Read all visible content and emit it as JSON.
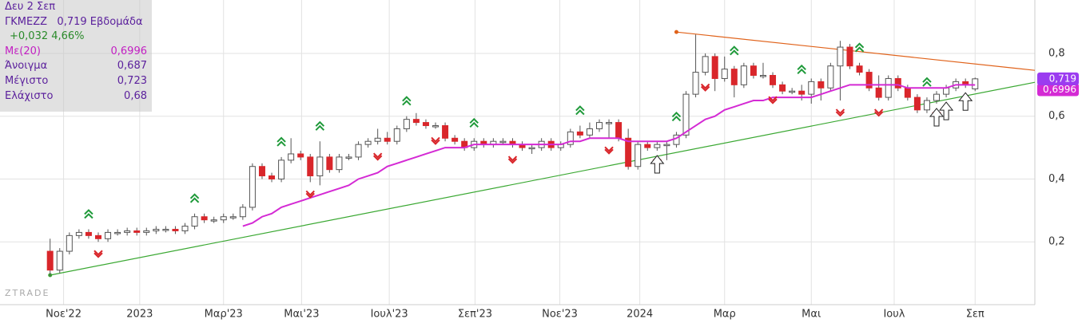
{
  "chart_data": {
    "type": "candlestick",
    "watermark": "ZTRADE",
    "info": {
      "date": "Δευ 2 Σεπ",
      "symbol": "ΓΚΜΕΖΖ",
      "last": "0,719",
      "period": "Εβδομάδα",
      "change": "+0,032 4,66%",
      "rows": [
        {
          "label": "Με(20)",
          "value": "0,6996"
        },
        {
          "label": "Άνοιγμα",
          "value": "0,687"
        },
        {
          "label": "Μέγιστο",
          "value": "0,723"
        },
        {
          "label": "Ελάχιστο",
          "value": "0,68"
        }
      ]
    },
    "xlim": [
      -5.2,
      102.2
    ],
    "ylim": [
      0,
      0.97
    ],
    "xticks": [
      {
        "value": 1.4,
        "label": "Νοε'22"
      },
      {
        "value": 9.3,
        "label": "2023"
      },
      {
        "value": 18,
        "label": "Μαρ'23"
      },
      {
        "value": 26.1,
        "label": "Μαι'23"
      },
      {
        "value": 35.2,
        "label": "Ιουλ'23"
      },
      {
        "value": 44.1,
        "label": "Σεπ'23"
      },
      {
        "value": 52.9,
        "label": "Νοε'23"
      },
      {
        "value": 61.2,
        "label": "2024"
      },
      {
        "value": 70,
        "label": "Μαρ"
      },
      {
        "value": 79,
        "label": "Μαι"
      },
      {
        "value": 87.6,
        "label": "Ιουλ"
      },
      {
        "value": 96,
        "label": "Σεπ"
      }
    ],
    "yticks": [
      {
        "value": 0.2,
        "label": "0,2"
      },
      {
        "value": 0.4,
        "label": "0,4"
      },
      {
        "value": 0.6,
        "label": "0,6"
      },
      {
        "value": 0.8,
        "label": "0,8"
      }
    ],
    "grid": true,
    "up_color": "#ffffff",
    "down_color": "#d9262b",
    "x": [
      0,
      1,
      2,
      3,
      4,
      5,
      6,
      7,
      8,
      9,
      10,
      11,
      12,
      13,
      14,
      15,
      16,
      17,
      18,
      19,
      20,
      21,
      22,
      23,
      24,
      25,
      26,
      27,
      28,
      29,
      30,
      31,
      32,
      33,
      34,
      35,
      36,
      37,
      38,
      39,
      40,
      41,
      42,
      43,
      44,
      45,
      46,
      47,
      48,
      49,
      50,
      51,
      52,
      53,
      54,
      55,
      56,
      57,
      58,
      59,
      60,
      61,
      62,
      63,
      64,
      65,
      66,
      67,
      68,
      69,
      70,
      71,
      72,
      73,
      74,
      75,
      76,
      77,
      78,
      79,
      80,
      81,
      82,
      83,
      84,
      85,
      86,
      87,
      88,
      89,
      90,
      91,
      92,
      93,
      94,
      95,
      96
    ],
    "open": [
      0.17,
      0.11,
      0.17,
      0.22,
      0.23,
      0.22,
      0.21,
      0.23,
      0.23,
      0.235,
      0.23,
      0.235,
      0.24,
      0.24,
      0.235,
      0.25,
      0.28,
      0.27,
      0.27,
      0.28,
      0.28,
      0.31,
      0.44,
      0.41,
      0.4,
      0.46,
      0.48,
      0.47,
      0.41,
      0.47,
      0.43,
      0.47,
      0.47,
      0.51,
      0.52,
      0.53,
      0.52,
      0.56,
      0.59,
      0.58,
      0.57,
      0.57,
      0.53,
      0.52,
      0.5,
      0.52,
      0.51,
      0.52,
      0.52,
      0.51,
      0.5,
      0.5,
      0.52,
      0.5,
      0.51,
      0.55,
      0.54,
      0.56,
      0.58,
      0.58,
      0.53,
      0.44,
      0.51,
      0.5,
      0.51,
      0.51,
      0.54,
      0.67,
      0.74,
      0.79,
      0.72,
      0.75,
      0.7,
      0.76,
      0.73,
      0.73,
      0.7,
      0.68,
      0.68,
      0.67,
      0.71,
      0.69,
      0.76,
      0.82,
      0.76,
      0.74,
      0.69,
      0.66,
      0.72,
      0.69,
      0.66,
      0.62,
      0.65,
      0.67,
      0.69,
      0.71,
      0.687
    ],
    "high": [
      0.21,
      0.18,
      0.23,
      0.24,
      0.24,
      0.23,
      0.24,
      0.24,
      0.245,
      0.245,
      0.245,
      0.25,
      0.25,
      0.25,
      0.26,
      0.29,
      0.29,
      0.28,
      0.29,
      0.29,
      0.32,
      0.45,
      0.45,
      0.42,
      0.47,
      0.53,
      0.49,
      0.48,
      0.52,
      0.48,
      0.48,
      0.48,
      0.52,
      0.53,
      0.56,
      0.55,
      0.57,
      0.6,
      0.61,
      0.59,
      0.58,
      0.58,
      0.54,
      0.53,
      0.53,
      0.53,
      0.53,
      0.53,
      0.53,
      0.52,
      0.51,
      0.53,
      0.53,
      0.52,
      0.56,
      0.57,
      0.58,
      0.59,
      0.59,
      0.59,
      0.56,
      0.52,
      0.52,
      0.52,
      0.52,
      0.55,
      0.68,
      0.86,
      0.8,
      0.8,
      0.79,
      0.76,
      0.77,
      0.77,
      0.77,
      0.74,
      0.71,
      0.69,
      0.7,
      0.72,
      0.72,
      0.77,
      0.84,
      0.83,
      0.77,
      0.75,
      0.73,
      0.73,
      0.73,
      0.7,
      0.67,
      0.66,
      0.68,
      0.7,
      0.72,
      0.72,
      0.723
    ],
    "low": [
      0.09,
      0.1,
      0.16,
      0.21,
      0.21,
      0.2,
      0.2,
      0.22,
      0.22,
      0.22,
      0.22,
      0.225,
      0.23,
      0.225,
      0.225,
      0.24,
      0.26,
      0.26,
      0.26,
      0.27,
      0.27,
      0.3,
      0.4,
      0.39,
      0.39,
      0.45,
      0.46,
      0.39,
      0.38,
      0.42,
      0.42,
      0.46,
      0.46,
      0.5,
      0.51,
      0.51,
      0.51,
      0.55,
      0.57,
      0.56,
      0.56,
      0.52,
      0.51,
      0.49,
      0.49,
      0.5,
      0.5,
      0.51,
      0.5,
      0.49,
      0.48,
      0.49,
      0.49,
      0.49,
      0.5,
      0.53,
      0.53,
      0.55,
      0.53,
      0.52,
      0.43,
      0.43,
      0.49,
      0.49,
      0.46,
      0.5,
      0.53,
      0.66,
      0.73,
      0.68,
      0.71,
      0.66,
      0.69,
      0.72,
      0.72,
      0.69,
      0.67,
      0.67,
      0.65,
      0.64,
      0.65,
      0.68,
      0.65,
      0.75,
      0.73,
      0.68,
      0.65,
      0.65,
      0.68,
      0.65,
      0.61,
      0.61,
      0.64,
      0.66,
      0.68,
      0.69,
      0.68
    ],
    "close": [
      0.11,
      0.17,
      0.22,
      0.23,
      0.22,
      0.21,
      0.23,
      0.23,
      0.235,
      0.23,
      0.235,
      0.24,
      0.24,
      0.235,
      0.25,
      0.28,
      0.27,
      0.27,
      0.28,
      0.28,
      0.31,
      0.44,
      0.41,
      0.4,
      0.46,
      0.48,
      0.47,
      0.41,
      0.47,
      0.43,
      0.47,
      0.47,
      0.51,
      0.52,
      0.53,
      0.52,
      0.56,
      0.59,
      0.58,
      0.57,
      0.57,
      0.53,
      0.52,
      0.5,
      0.52,
      0.51,
      0.52,
      0.52,
      0.51,
      0.5,
      0.5,
      0.52,
      0.5,
      0.51,
      0.55,
      0.54,
      0.56,
      0.58,
      0.58,
      0.53,
      0.44,
      0.51,
      0.5,
      0.51,
      0.51,
      0.54,
      0.67,
      0.74,
      0.79,
      0.72,
      0.75,
      0.7,
      0.76,
      0.73,
      0.73,
      0.7,
      0.68,
      0.68,
      0.67,
      0.71,
      0.69,
      0.76,
      0.82,
      0.76,
      0.74,
      0.69,
      0.66,
      0.72,
      0.69,
      0.66,
      0.62,
      0.65,
      0.67,
      0.69,
      0.71,
      0.7,
      0.719
    ],
    "ma": {
      "color": "#d42ad4",
      "values": [
        null,
        null,
        null,
        null,
        null,
        null,
        null,
        null,
        null,
        null,
        null,
        null,
        null,
        null,
        null,
        null,
        null,
        null,
        null,
        null,
        0.25,
        0.26,
        0.28,
        0.29,
        0.31,
        0.32,
        0.33,
        0.34,
        0.35,
        0.36,
        0.37,
        0.38,
        0.4,
        0.41,
        0.42,
        0.44,
        0.45,
        0.46,
        0.47,
        0.48,
        0.49,
        0.5,
        0.5,
        0.5,
        0.51,
        0.51,
        0.51,
        0.51,
        0.51,
        0.51,
        0.51,
        0.51,
        0.51,
        0.51,
        0.52,
        0.52,
        0.53,
        0.53,
        0.53,
        0.53,
        0.52,
        0.52,
        0.52,
        0.52,
        0.52,
        0.53,
        0.55,
        0.57,
        0.59,
        0.6,
        0.62,
        0.63,
        0.64,
        0.65,
        0.65,
        0.66,
        0.66,
        0.66,
        0.66,
        0.66,
        0.67,
        0.68,
        0.69,
        0.7,
        0.7,
        0.7,
        0.7,
        0.7,
        0.7,
        0.69,
        0.69,
        0.69,
        0.69,
        0.69,
        0.7,
        0.7,
        0.6996
      ]
    },
    "trendlines": [
      {
        "color": "#3aa832",
        "x": [
          0,
          102.2
        ],
        "y": [
          0.094,
          0.708
        ]
      },
      {
        "color": "#e0621a",
        "x": [
          65,
          102.2
        ],
        "y": [
          0.868,
          0.746
        ]
      }
    ],
    "up_signals": [
      4,
      15,
      24,
      28,
      37,
      44,
      55,
      65,
      71,
      78,
      84,
      91
    ],
    "down_signals": [
      5,
      27,
      34,
      40,
      48,
      58,
      63,
      68,
      75,
      82,
      86,
      92
    ],
    "arrows": [
      63,
      92,
      93,
      95
    ],
    "price_labels": [
      {
        "label": "0,719",
        "value": 0.719,
        "color": "#9b3cf0"
      },
      {
        "label": "0,6996",
        "value": 0.6996,
        "color": "#d42ad4"
      }
    ]
  }
}
